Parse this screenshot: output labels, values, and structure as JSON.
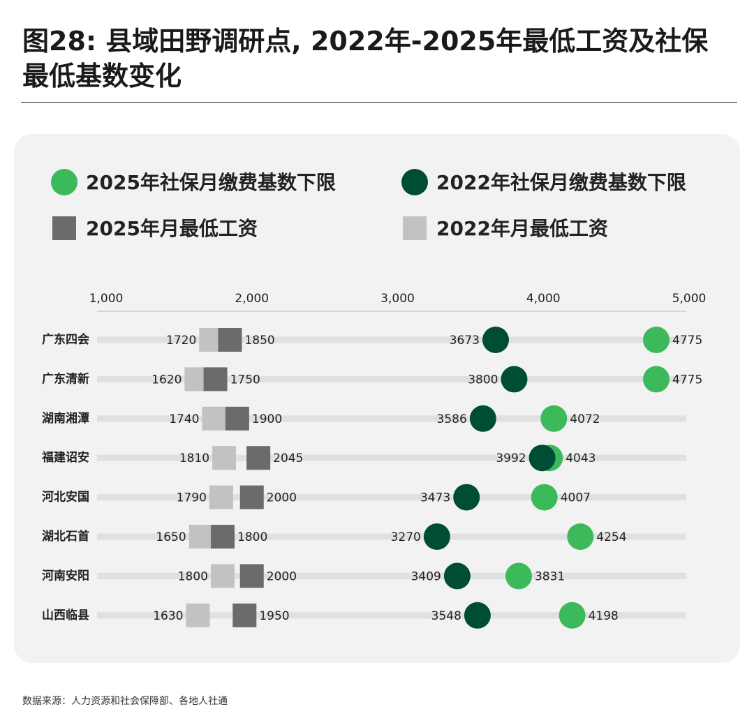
{
  "chart_data": {
    "type": "dot",
    "title": "图28: 县域田野调研点, 2022年-2025年最低工资及社保最低基数变化",
    "source": "数据来源：人力资源和社会保障部、各地人社通",
    "categories": [
      "广东四会",
      "广东清新",
      "湖南湘潭",
      "福建诏安",
      "河北安国",
      "湖北石首",
      "河南安阳",
      "山西临县"
    ],
    "series": [
      {
        "name": "2025年社保月缴费基数下限",
        "color": "#3cb95a",
        "shape": "circle",
        "values": [
          4775,
          4775,
          4072,
          4043,
          4007,
          4254,
          3831,
          4198
        ]
      },
      {
        "name": "2022年社保月缴费基数下限",
        "color": "#004d35",
        "shape": "circle",
        "values": [
          3673,
          3800,
          3586,
          3992,
          3473,
          3270,
          3409,
          3548
        ]
      },
      {
        "name": "2025年月最低工资",
        "color": "#6b6b6b",
        "shape": "square",
        "values": [
          1850,
          1750,
          1900,
          2045,
          2000,
          1800,
          2000,
          1950
        ]
      },
      {
        "name": "2022年月最低工资",
        "color": "#c2c2c2",
        "shape": "square",
        "values": [
          1720,
          1620,
          1740,
          1810,
          1790,
          1650,
          1800,
          1630
        ]
      }
    ],
    "xlim": [
      1000,
      5000
    ],
    "xticks": [
      {
        "value": 1000,
        "label": "1,000"
      },
      {
        "value": 2000,
        "label": "2,000"
      },
      {
        "value": 3000,
        "label": "3,000"
      },
      {
        "value": 4000,
        "label": "4,000"
      },
      {
        "value": 5000,
        "label": "5,000"
      }
    ]
  }
}
